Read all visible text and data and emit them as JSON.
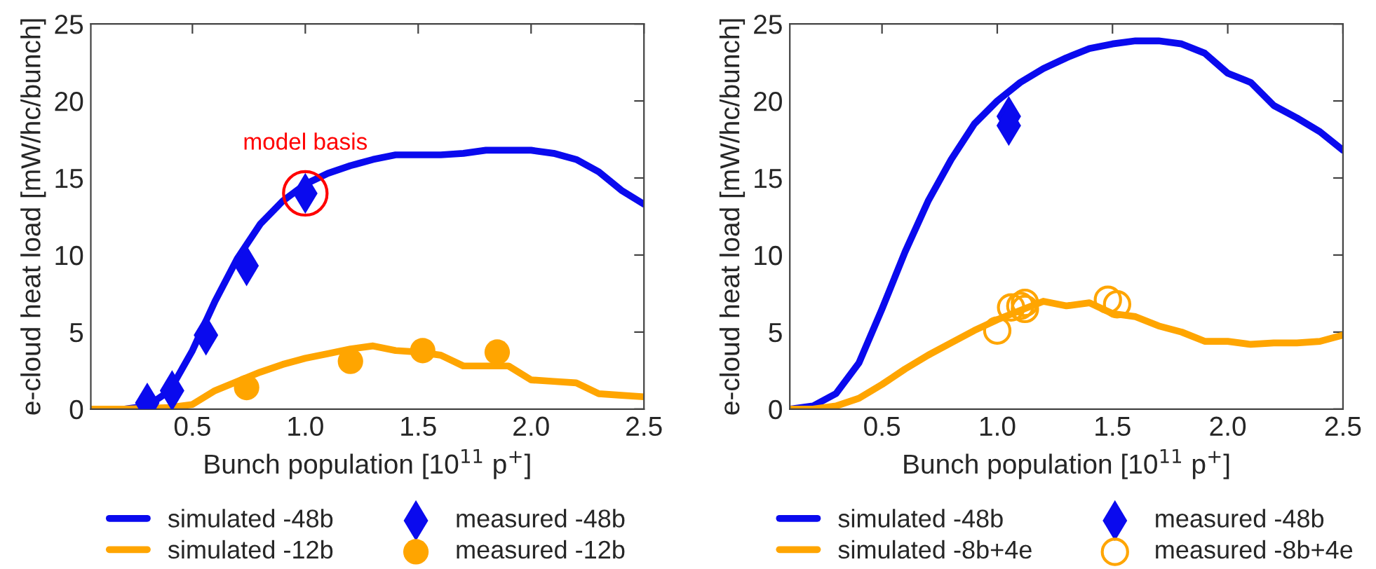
{
  "chart_data": [
    {
      "type": "line",
      "xlabel": "Bunch population [10$^{11}$ p$^{+}$]",
      "ylabel": "e-cloud heat load [mW/hc/bunch]",
      "xlim": [
        0.05,
        2.5
      ],
      "xticks": [
        {
          "value": 0.5,
          "label": "0.5"
        },
        {
          "value": 1.0,
          "label": "1.0"
        },
        {
          "value": 1.5,
          "label": "1.5"
        },
        {
          "value": 2.0,
          "label": "2.0"
        },
        {
          "value": 2.5,
          "label": "2.5"
        }
      ],
      "ylim": [
        0,
        25
      ],
      "yticks": [
        0,
        5,
        10,
        15,
        20,
        25
      ],
      "grid": false,
      "legend": "bottom",
      "annotations": [
        {
          "text": "model basis",
          "x": 1.0,
          "y": 14.0
        }
      ],
      "series": [
        {
          "name": "simulated -48b",
          "type": "line",
          "color": "#0a0aee",
          "marker": "none",
          "x": [
            0.05,
            0.1,
            0.2,
            0.3,
            0.4,
            0.5,
            0.6,
            0.7,
            0.8,
            0.9,
            1.0,
            1.1,
            1.2,
            1.3,
            1.4,
            1.5,
            1.6,
            1.7,
            1.8,
            1.9,
            2.0,
            2.1,
            2.2,
            2.3,
            2.4,
            2.5
          ],
          "values": [
            0,
            0,
            0,
            0.2,
            1.2,
            3.8,
            7.0,
            9.8,
            12.0,
            13.5,
            14.6,
            15.3,
            15.8,
            16.2,
            16.5,
            16.5,
            16.5,
            16.6,
            16.8,
            16.8,
            16.8,
            16.6,
            16.2,
            15.4,
            14.2,
            13.3
          ]
        },
        {
          "name": "simulated -12b",
          "type": "line",
          "color": "#ffa500",
          "marker": "none",
          "x": [
            0.05,
            0.1,
            0.2,
            0.4,
            0.5,
            0.6,
            0.7,
            0.8,
            0.9,
            1.0,
            1.1,
            1.2,
            1.3,
            1.4,
            1.5,
            1.6,
            1.7,
            1.8,
            1.9,
            2.0,
            2.1,
            2.2,
            2.3,
            2.4,
            2.5
          ],
          "values": [
            0,
            0,
            0,
            0.1,
            0.3,
            1.2,
            1.8,
            2.4,
            2.9,
            3.3,
            3.6,
            3.9,
            4.1,
            3.8,
            3.7,
            3.5,
            2.8,
            2.8,
            2.8,
            1.9,
            1.8,
            1.7,
            1.0,
            0.9,
            0.8
          ]
        },
        {
          "name": "measured -48b",
          "type": "scatter",
          "color": "#0a0aee",
          "marker": "diamond",
          "x": [
            0.3,
            0.41,
            0.56,
            0.74,
            1.0
          ],
          "values": [
            0.4,
            1.2,
            4.8,
            9.3,
            14.0
          ]
        },
        {
          "name": "measured -12b",
          "type": "scatter",
          "color": "#ffa500",
          "marker": "circle",
          "x": [
            0.74,
            1.2,
            1.52,
            1.85
          ],
          "values": [
            1.4,
            3.1,
            3.8,
            3.7
          ]
        }
      ]
    },
    {
      "type": "line",
      "xlabel": "Bunch population [10$^{11}$ p$^{+}$]",
      "ylabel": "e-cloud heat load [mW/hc/bunch]",
      "xlim": [
        0.1,
        2.5
      ],
      "xticks": [
        {
          "value": 0.5,
          "label": "0.5"
        },
        {
          "value": 1.0,
          "label": "1.0"
        },
        {
          "value": 1.5,
          "label": "1.5"
        },
        {
          "value": 2.0,
          "label": "2.0"
        },
        {
          "value": 2.5,
          "label": "2.5"
        }
      ],
      "ylim": [
        0,
        25
      ],
      "yticks": [
        0,
        5,
        10,
        15,
        20,
        25
      ],
      "grid": false,
      "legend": "bottom",
      "series": [
        {
          "name": "simulated -48b",
          "type": "line",
          "color": "#0a0aee",
          "marker": "none",
          "x": [
            0.1,
            0.2,
            0.3,
            0.4,
            0.5,
            0.6,
            0.7,
            0.8,
            0.9,
            1.0,
            1.1,
            1.2,
            1.3,
            1.4,
            1.5,
            1.6,
            1.7,
            1.8,
            1.9,
            2.0,
            2.1,
            2.2,
            2.3,
            2.4,
            2.5
          ],
          "values": [
            0,
            0.2,
            1.0,
            3.0,
            6.5,
            10.2,
            13.5,
            16.2,
            18.5,
            20.0,
            21.2,
            22.1,
            22.8,
            23.4,
            23.7,
            23.9,
            23.9,
            23.7,
            23.1,
            21.8,
            21.2,
            19.7,
            18.9,
            18.0,
            16.8
          ]
        },
        {
          "name": "simulated -8b+4e",
          "type": "line",
          "color": "#ffa500",
          "marker": "none",
          "x": [
            0.1,
            0.2,
            0.3,
            0.4,
            0.5,
            0.6,
            0.7,
            0.8,
            0.9,
            1.0,
            1.1,
            1.2,
            1.3,
            1.4,
            1.5,
            1.6,
            1.7,
            1.8,
            1.9,
            2.0,
            2.1,
            2.2,
            2.3,
            2.4,
            2.5
          ],
          "values": [
            0,
            0,
            0.2,
            0.7,
            1.6,
            2.6,
            3.5,
            4.3,
            5.1,
            5.8,
            6.4,
            7.0,
            6.7,
            6.9,
            6.2,
            6.0,
            5.4,
            5.0,
            4.4,
            4.4,
            4.2,
            4.3,
            4.3,
            4.4,
            4.8
          ]
        },
        {
          "name": "measured -48b",
          "type": "scatter",
          "color": "#0a0aee",
          "marker": "diamond",
          "x": [
            1.05,
            1.05
          ],
          "values": [
            19.0,
            18.4
          ]
        },
        {
          "name": "measured -8b+4e",
          "type": "scatter",
          "color": "#ffa500",
          "marker": "circle",
          "x": [
            1.0,
            1.06,
            1.1,
            1.12,
            1.12,
            1.48,
            1.52
          ],
          "values": [
            5.1,
            6.6,
            6.7,
            6.9,
            6.5,
            7.1,
            6.8
          ]
        }
      ]
    }
  ]
}
